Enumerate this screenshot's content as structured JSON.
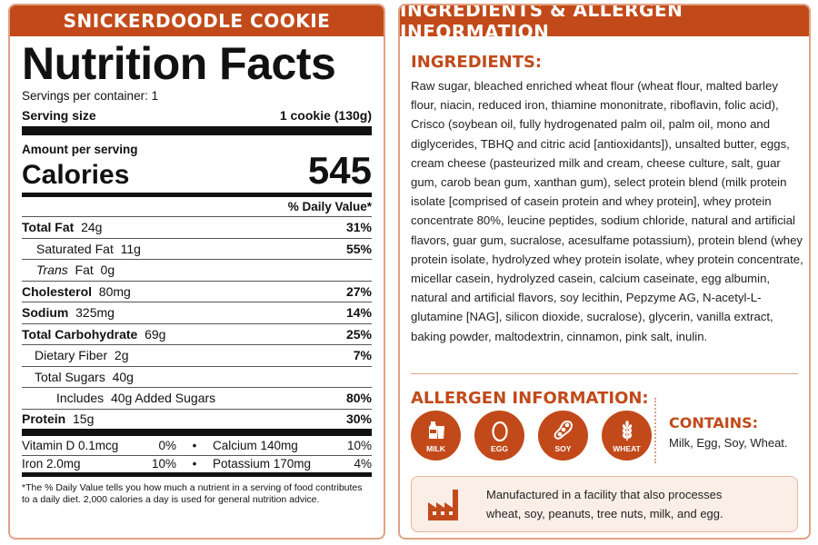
{
  "left": {
    "banner": "SNICKERDOODLE COOKIE",
    "title": "Nutrition Facts",
    "servings": "Servings per container: 1",
    "serving_size_label": "Serving size",
    "serving_size_value": "1 cookie (130g)",
    "amount_per_serving": "Amount per serving",
    "calories_label": "Calories",
    "calories_value": "545",
    "dv_header": "% Daily Value*",
    "rows": [
      {
        "name": "Total Fat",
        "amount": "24g",
        "dv": "31%"
      },
      {
        "name": "Saturated Fat",
        "amount": "11g",
        "dv": "55%"
      },
      {
        "name_italic": "Trans",
        "name": "Fat",
        "amount": "0g",
        "dv": ""
      },
      {
        "name": "Cholesterol",
        "amount": "80mg",
        "dv": "27%"
      },
      {
        "name": "Sodium",
        "amount": "325mg",
        "dv": "14%"
      },
      {
        "name": "Total Carbohydrate",
        "amount": "69g",
        "dv": "25%"
      },
      {
        "name": "Dietary Fiber",
        "amount": "2g",
        "dv": "7%"
      },
      {
        "name": "Total Sugars",
        "amount": "40g",
        "dv": ""
      },
      {
        "name": "Includes",
        "amount": "40g Added Sugars",
        "dv": "80%"
      },
      {
        "name": "Protein",
        "amount": "15g",
        "dv": "30%"
      }
    ],
    "vitamins": [
      {
        "n1": "Vitamin D 0.1mcg",
        "p1": "0%",
        "n2": "Calcium 140mg",
        "p2": "10%"
      },
      {
        "n1": "Iron 2.0mg",
        "p1": "10%",
        "n2": "Potassium 170mg",
        "p2": "4%"
      }
    ],
    "bullet": "•",
    "footnote": "*The % Daily Value tells you how much a nutrient in a serving of food contributes to a daily diet. 2,000 calories a day is used for general nutrition advice."
  },
  "right": {
    "banner": "INGREDIENTS & ALLERGEN INFORMATION",
    "ingredients_title": "INGREDIENTS:",
    "ingredients_text": "Raw sugar, bleached enriched wheat flour (wheat flour, malted barley flour, niacin, reduced iron, thiamine mononitrate, riboflavin, folic acid), Crisco (soybean oil, fully hydrogenated palm oil, palm oil, mono and diglycerides, TBHQ and citric acid [antioxidants]), unsalted butter, eggs, cream cheese (pasteurized milk and cream, cheese culture, salt, guar gum, carob bean gum, xanthan gum), select protein blend (milk protein isolate [comprised of casein protein and whey protein], whey protein concentrate 80%, leucine peptides, sodium chloride, natural and artificial flavors, guar gum, sucralose, acesulfame potassium), protein blend (whey protein isolate, hydrolyzed whey protein isolate, whey protein concentrate, micellar casein, hydrolyzed casein, calcium caseinate, egg albumin, natural and artificial flavors, soy lecithin, Pepzyme AG, N-acetyl-L-glutamine [NAG], silicon dioxide, sucralose), glycerin, vanilla extract, baking powder, maltodextrin, cinnamon, pink salt, inulin.",
    "allergen_title": "ALLERGEN INFORMATION:",
    "allergens": [
      {
        "label": "MILK",
        "icon": "milk-icon"
      },
      {
        "label": "EGG",
        "icon": "egg-icon"
      },
      {
        "label": "SOY",
        "icon": "soy-icon"
      },
      {
        "label": "WHEAT",
        "icon": "wheat-icon"
      }
    ],
    "contains_title": "CONTAINS:",
    "contains_text": "Milk, Egg, Soy, Wheat.",
    "facility_icon": "factory-icon",
    "facility_text": "Manufactured in a facility that also processes\nwheat, soy, peanuts, tree nuts, milk, and egg."
  },
  "colors": {
    "accent": "#c24a1a",
    "border": "#e0a285",
    "facility_bg": "#fbeee6"
  }
}
